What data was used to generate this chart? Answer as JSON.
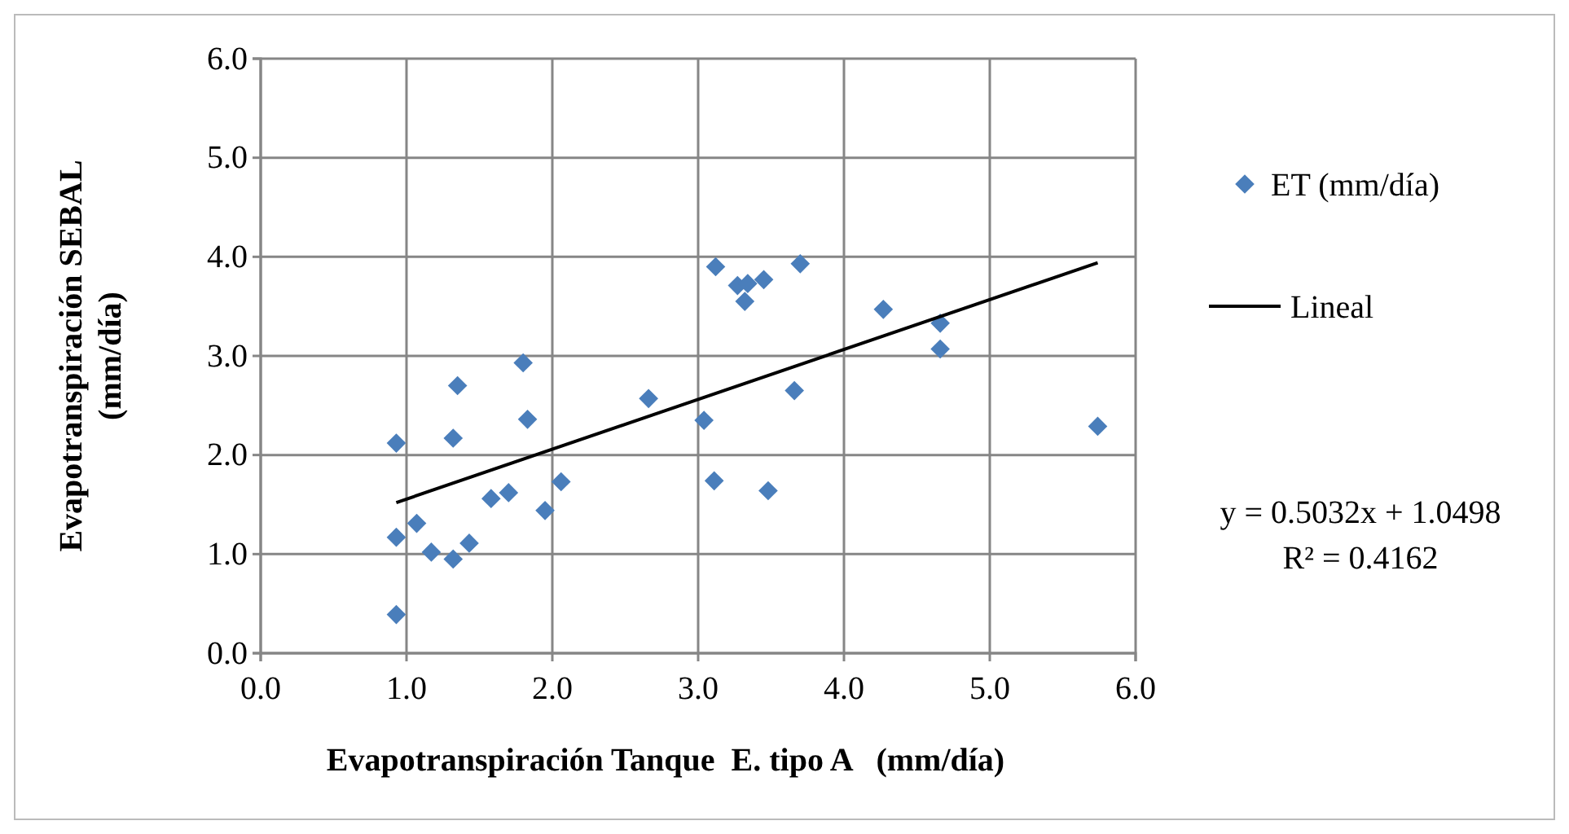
{
  "chart_data": {
    "type": "scatter",
    "xlabel": "Evapotranspiración Tanque  E. tipo A   (mm/día)",
    "ylabel": "Evapotranspiración SEBAL (mm/día)",
    "xlim": [
      0,
      6
    ],
    "ylim": [
      0,
      6
    ],
    "xticks": [
      {
        "value": 0,
        "label": "0.0"
      },
      {
        "value": 1,
        "label": "1.0"
      },
      {
        "value": 2,
        "label": "2.0"
      },
      {
        "value": 3,
        "label": "3.0"
      },
      {
        "value": 4,
        "label": "4.0"
      },
      {
        "value": 5,
        "label": "5.0"
      },
      {
        "value": 6,
        "label": "6.0"
      }
    ],
    "yticks": [
      {
        "value": 0,
        "label": "0.0"
      },
      {
        "value": 1,
        "label": "1.0"
      },
      {
        "value": 2,
        "label": "2.0"
      },
      {
        "value": 3,
        "label": "3.0"
      },
      {
        "value": 4,
        "label": "4.0"
      },
      {
        "value": 5,
        "label": "5.0"
      },
      {
        "value": 6,
        "label": "6.0"
      }
    ],
    "grid": true,
    "legend": "right",
    "series": [
      {
        "name": "ET (mm/día)",
        "marker": "diamond",
        "color": "#4a7ebb",
        "x": [
          0.93,
          0.93,
          0.93,
          1.07,
          1.17,
          1.32,
          1.32,
          1.35,
          1.43,
          1.58,
          1.7,
          1.8,
          1.83,
          1.95,
          2.06,
          2.66,
          3.04,
          3.11,
          3.12,
          3.27,
          3.32,
          3.34,
          3.45,
          3.48,
          3.66,
          3.7,
          4.27,
          4.66,
          4.66,
          5.74
        ],
        "values": [
          2.12,
          1.17,
          0.39,
          1.31,
          1.02,
          0.95,
          2.17,
          2.7,
          1.11,
          1.56,
          1.62,
          2.93,
          2.36,
          1.44,
          1.73,
          2.57,
          2.35,
          1.74,
          3.9,
          3.71,
          3.55,
          3.73,
          3.77,
          1.64,
          2.65,
          3.93,
          3.47,
          3.33,
          3.07,
          2.29
        ]
      },
      {
        "name": "Lineal",
        "type": "line",
        "marker": "none",
        "color": "#000000",
        "x": [
          0.93,
          5.74
        ],
        "values": [
          1.52,
          3.94
        ]
      }
    ],
    "annotations": [
      "y = 0.5032x + 1.0498",
      "R² = 0.4162"
    ]
  }
}
